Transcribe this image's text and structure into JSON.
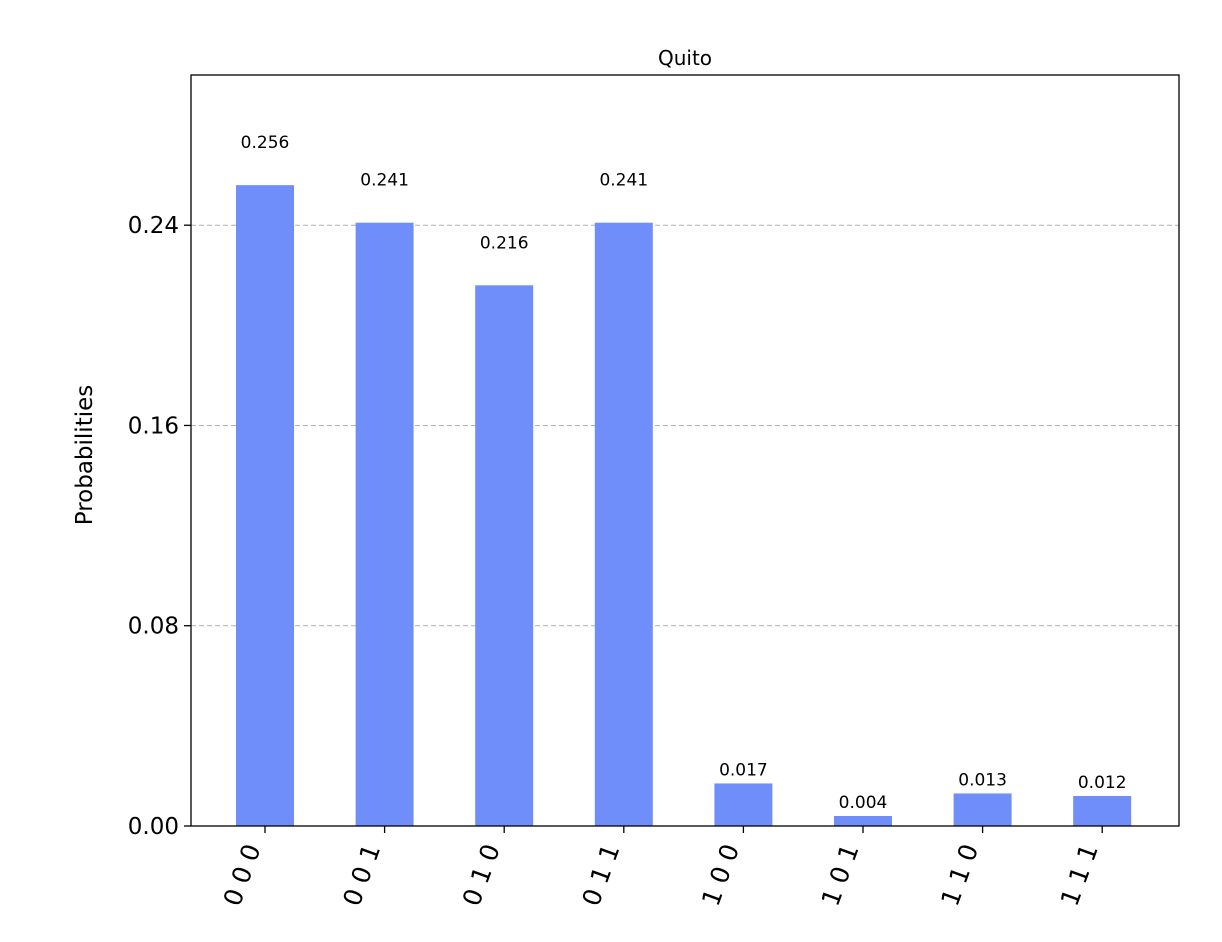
{
  "chart_data": {
    "type": "bar",
    "title": "Quito",
    "ylabel": "Probabilities",
    "xlabel": "",
    "categories": [
      "000",
      "001",
      "010",
      "011",
      "100",
      "101",
      "110",
      "111"
    ],
    "category_labels": [
      "0 0 0",
      "0 0 1",
      "0 1 0",
      "0 1 1",
      "1 0 0",
      "1 0 1",
      "1 1 0",
      "1 1 1"
    ],
    "values": [
      0.256,
      0.241,
      0.216,
      0.241,
      0.017,
      0.004,
      0.013,
      0.012
    ],
    "value_labels": [
      "0.256",
      "0.241",
      "0.216",
      "0.241",
      "0.017",
      "0.004",
      "0.013",
      "0.012"
    ],
    "yticks": [
      0.0,
      0.08,
      0.16,
      0.24
    ],
    "ytick_labels": [
      "0.00",
      "0.08",
      "0.16",
      "0.24"
    ],
    "ylim": [
      0,
      0.3
    ],
    "grid": "y-dashed",
    "bar_color": "#6f8ef9"
  }
}
